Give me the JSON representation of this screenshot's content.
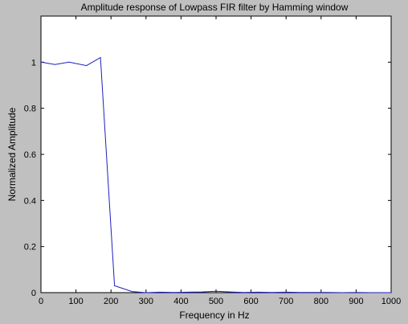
{
  "colors": {
    "figure_bg": "#c0c0c0",
    "axes_bg": "#ffffff",
    "axes_line": "#000000",
    "series_line": "#1f1fbf"
  },
  "chart_data": {
    "type": "line",
    "title": "Amplitude response of Lowpass FIR filter by Hamming window",
    "xlabel": "Frequency in Hz",
    "ylabel": "Normalized Amplitude",
    "xlim": [
      0,
      1000
    ],
    "ylim": [
      0,
      1.2
    ],
    "grid": false,
    "legend": "none",
    "x_ticks": [
      0,
      100,
      200,
      300,
      400,
      500,
      600,
      700,
      800,
      900,
      1000
    ],
    "x_tick_labels": [
      "0",
      "100",
      "200",
      "300",
      "400",
      "500",
      "600",
      "700",
      "800",
      "900",
      "1000"
    ],
    "y_ticks": [
      0,
      0.2,
      0.4,
      0.6,
      0.8,
      1.0
    ],
    "y_tick_labels": [
      "0",
      "0.2",
      "0.4",
      "0.6",
      "0.8",
      "1"
    ],
    "series": [
      {
        "color": "#1f1fbf",
        "x": [
          0,
          40,
          80,
          130,
          170,
          210,
          260,
          300,
          340,
          380,
          420,
          460,
          500,
          540,
          580,
          620,
          660,
          700,
          740,
          780,
          820,
          860,
          900,
          940,
          980,
          1000
        ],
        "y": [
          1.0,
          0.99,
          1.0,
          0.985,
          1.02,
          0.03,
          0.005,
          0.0,
          0.002,
          0.001,
          0.002,
          0.003,
          0.006,
          0.003,
          0.001,
          0.002,
          0.001,
          0.002,
          0.001,
          0.001,
          0.001,
          0.0,
          0.001,
          0.0,
          0.0,
          0.0
        ]
      }
    ]
  }
}
